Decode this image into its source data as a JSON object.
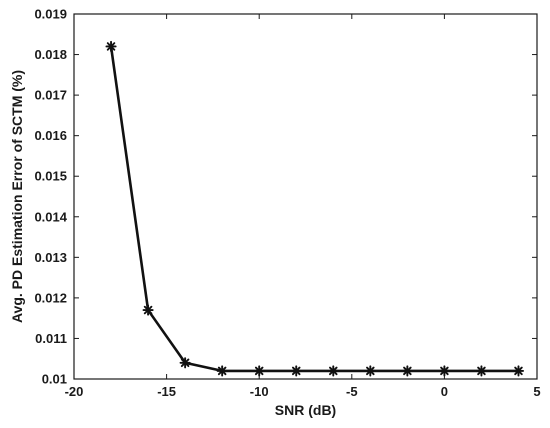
{
  "chart_data": {
    "type": "line",
    "title": "",
    "xlabel": "SNR (dB)",
    "ylabel": "Avg. PD Estimation Error of SCTM (%)",
    "xlim": [
      -20,
      5
    ],
    "ylim": [
      0.01,
      0.019
    ],
    "x_ticks": [
      -20,
      -15,
      -10,
      -5,
      0,
      5
    ],
    "y_ticks": [
      0.01,
      0.011,
      0.012,
      0.013,
      0.014,
      0.015,
      0.016,
      0.017,
      0.018,
      0.019
    ],
    "grid": false,
    "series": [
      {
        "marker": "asterisk",
        "color": "#111111",
        "x": [
          -18,
          -16,
          -14,
          -12,
          -10,
          -8,
          -6,
          -4,
          -2,
          0,
          2,
          4
        ],
        "y": [
          0.0182,
          0.0117,
          0.0104,
          0.0102,
          0.0102,
          0.0102,
          0.0102,
          0.0102,
          0.0102,
          0.0102,
          0.0102,
          0.0102
        ]
      }
    ]
  }
}
